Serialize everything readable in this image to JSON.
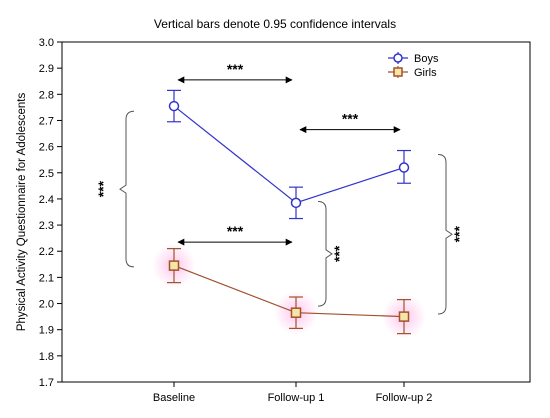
{
  "chart_data": {
    "type": "line",
    "title": "Vertical bars denote 0.95 confidence intervals",
    "xlabel": "",
    "ylabel": "Physical Activity Questionnaire for Adolescents",
    "categories": [
      "Baseline",
      "Follow-up 1",
      "Follow-up 2"
    ],
    "ylim": [
      1.7,
      3.0
    ],
    "yticks": [
      1.7,
      1.8,
      1.9,
      2.0,
      2.1,
      2.2,
      2.3,
      2.4,
      2.5,
      2.6,
      2.7,
      2.8,
      2.9,
      3.0
    ],
    "ytick_labels": [
      "1.7",
      "1.8",
      "1.9",
      "2.0",
      "2.1",
      "2.2",
      "2.3",
      "2.4",
      "2.5",
      "2.6",
      "2.7",
      "2.8",
      "2.9",
      "3.0"
    ],
    "grid": false,
    "legend_position": "top-right",
    "series": [
      {
        "name": "Boys",
        "color": "#3333cc",
        "marker": "circle",
        "values": [
          2.755,
          2.385,
          2.52
        ],
        "ci_lower": [
          2.695,
          2.325,
          2.46
        ],
        "ci_upper": [
          2.815,
          2.445,
          2.585
        ]
      },
      {
        "name": "Girls",
        "color": "#a0522d",
        "marker": "square",
        "values": [
          2.145,
          1.965,
          1.95
        ],
        "ci_lower": [
          2.08,
          1.905,
          1.885
        ],
        "ci_upper": [
          2.21,
          2.025,
          2.015
        ]
      }
    ],
    "annotations": [
      {
        "type": "arrow",
        "label": "***",
        "from": "Baseline",
        "to": "Follow-up 1",
        "y": 2.855
      },
      {
        "type": "arrow",
        "label": "***",
        "from": "Follow-up 1",
        "to": "Follow-up 2",
        "y": 2.665
      },
      {
        "type": "arrow",
        "label": "***",
        "from": "Baseline",
        "to": "Follow-up 1",
        "y": 2.235
      },
      {
        "type": "bracket",
        "label": "***",
        "at": "Baseline",
        "y_range": [
          2.14,
          2.735
        ]
      },
      {
        "type": "bracket",
        "label": "***",
        "at": "Follow-up 1",
        "y_range": [
          1.99,
          2.39
        ]
      },
      {
        "type": "bracket",
        "label": "***",
        "at": "Follow-up 2",
        "y_range": [
          1.96,
          2.57
        ]
      }
    ]
  }
}
